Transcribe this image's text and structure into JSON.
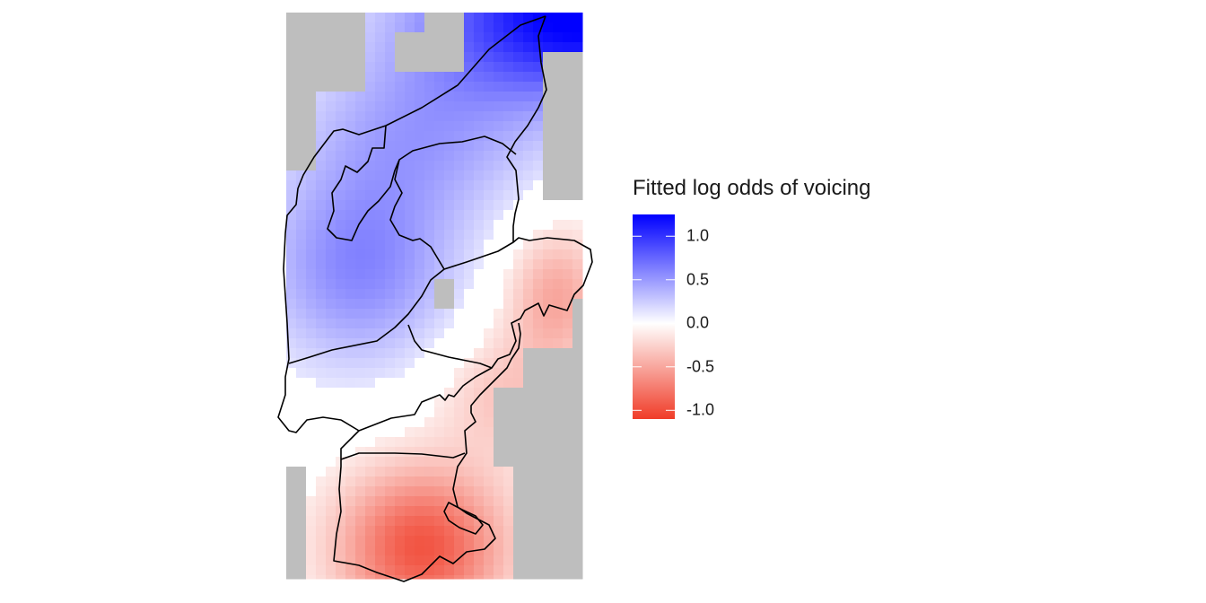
{
  "map": {
    "missing_color": "#bebebe",
    "region_outline_color": "#000000"
  },
  "legend": {
    "title": "Fitted log odds of voicing",
    "range": [
      -1.1,
      1.25
    ],
    "low_color": "#f03c28",
    "mid_color": "#ffffff",
    "high_color": "#0000ff",
    "ticks": [
      {
        "value": 1.0,
        "label": "1.0"
      },
      {
        "value": 0.5,
        "label": "0.5"
      },
      {
        "value": 0.0,
        "label": "0.0"
      },
      {
        "value": -0.5,
        "label": "-0.5"
      },
      {
        "value": -1.0,
        "label": "-1.0"
      }
    ]
  }
}
